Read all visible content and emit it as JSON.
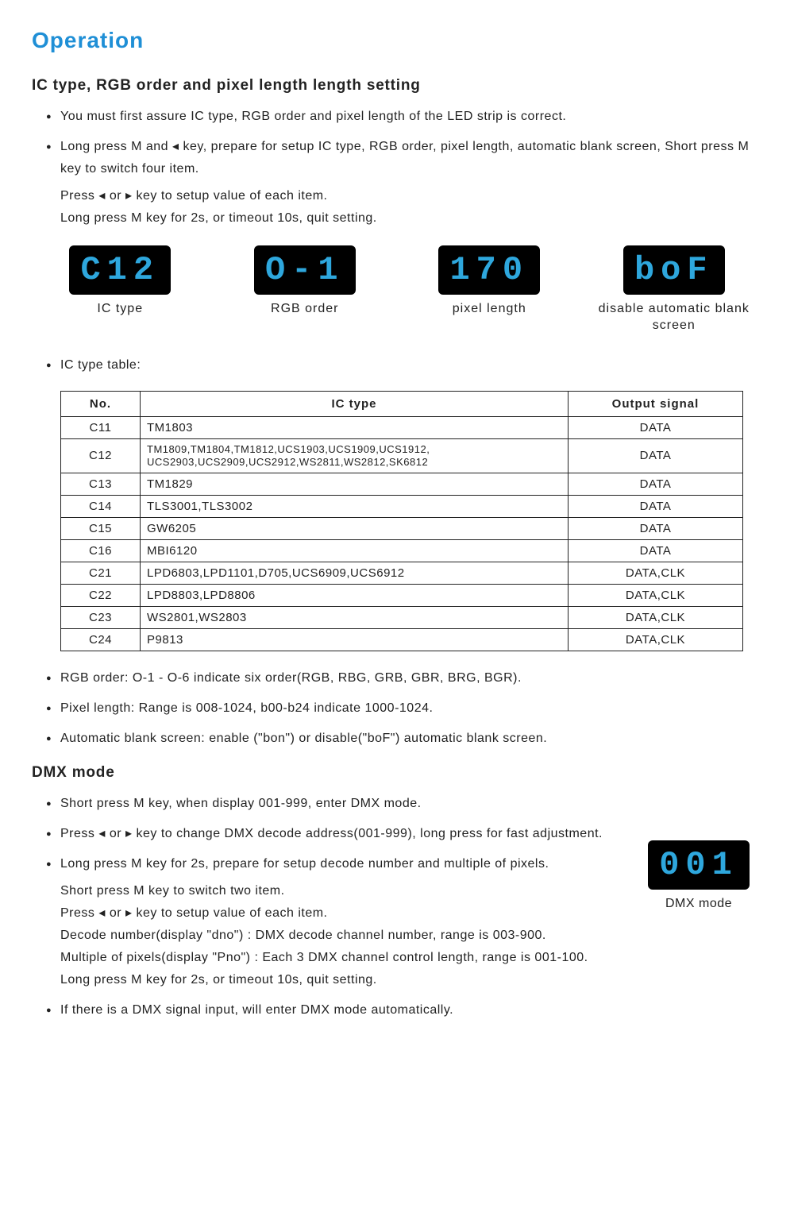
{
  "page": {
    "title": "Operation",
    "section1": {
      "heading": "IC type, RGB order and pixel length length setting",
      "b1": "You must first assure IC type, RGB order and pixel length of the LED strip is correct.",
      "b2": "Long press M and ◂ key, prepare for setup IC type, RGB order, pixel length, automatic blank screen, Short press M key to switch four item.",
      "b2s1": "Press ◂ or ▸ key to setup value of each item.",
      "b2s2": "Long press M key for 2s, or timeout 10s, quit setting.",
      "b3": "IC type table:",
      "n1": "RGB order: O-1 - O-6 indicate six order(RGB, RBG, GRB, GBR, BRG, BGR).",
      "n2": "Pixel length: Range is 008-1024, b00-b24 indicate 1000-1024.",
      "n3": "Automatic blank screen: enable (\"bon\") or disable(\"boF\") automatic blank screen."
    },
    "displays": {
      "d1": {
        "value": "C12",
        "caption": "IC type"
      },
      "d2": {
        "value": "O-1",
        "caption": "RGB order"
      },
      "d3": {
        "value": "170",
        "caption": "pixel length"
      },
      "d4": {
        "value": "boF",
        "caption": "disable automatic blank screen"
      }
    },
    "table": {
      "h1": "No.",
      "h2": "IC type",
      "h3": "Output signal",
      "rows": [
        {
          "no": "C11",
          "ic": "TM1803",
          "out": "DATA",
          "small": false
        },
        {
          "no": "C12",
          "ic": "TM1809,TM1804,TM1812,UCS1903,UCS1909,UCS1912, UCS2903,UCS2909,UCS2912,WS2811,WS2812,SK6812",
          "out": "DATA",
          "small": true
        },
        {
          "no": "C13",
          "ic": "TM1829",
          "out": "DATA",
          "small": false
        },
        {
          "no": "C14",
          "ic": "TLS3001,TLS3002",
          "out": "DATA",
          "small": false
        },
        {
          "no": "C15",
          "ic": "GW6205",
          "out": "DATA",
          "small": false
        },
        {
          "no": "C16",
          "ic": "MBI6120",
          "out": "DATA",
          "small": false
        },
        {
          "no": "C21",
          "ic": "LPD6803,LPD1101,D705,UCS6909,UCS6912",
          "out": "DATA,CLK",
          "small": false
        },
        {
          "no": "C22",
          "ic": "LPD8803,LPD8806",
          "out": "DATA,CLK",
          "small": false
        },
        {
          "no": "C23",
          "ic": "WS2801,WS2803",
          "out": "DATA,CLK",
          "small": false
        },
        {
          "no": "C24",
          "ic": "P9813",
          "out": "DATA,CLK",
          "small": false
        }
      ]
    },
    "section2": {
      "heading": "DMX mode",
      "b1": "Short press M key, when display 001-999, enter DMX mode.",
      "b2": "Press ◂ or ▸ key to change DMX decode address(001-999), long press for fast adjustment.",
      "b3": "Long press M key for 2s, prepare for setup decode number and multiple of pixels.",
      "b3s1": "Short press M key to switch two item.",
      "b3s2": "Press ◂ or ▸ key to setup value of each item.",
      "b3s3": "Decode number(display \"dno\") : DMX decode channel number, range is 003-900.",
      "b3s4": "Multiple of pixels(display \"Pno\") : Each 3 DMX channel control length, range is 001-100.",
      "b3s5": "Long press M key for 2s, or timeout 10s, quit setting.",
      "b4": "If there is a DMX signal input, will enter DMX mode automatically.",
      "display": {
        "value": "001",
        "caption": "DMX mode"
      }
    }
  },
  "style": {
    "accent_color": "#1f8fd6",
    "lcd_bg": "#000000",
    "lcd_fg": "#2ea7dd",
    "text_color": "#222222",
    "border_color": "#222222",
    "body_font_size": 16,
    "title_font_size": 28
  }
}
